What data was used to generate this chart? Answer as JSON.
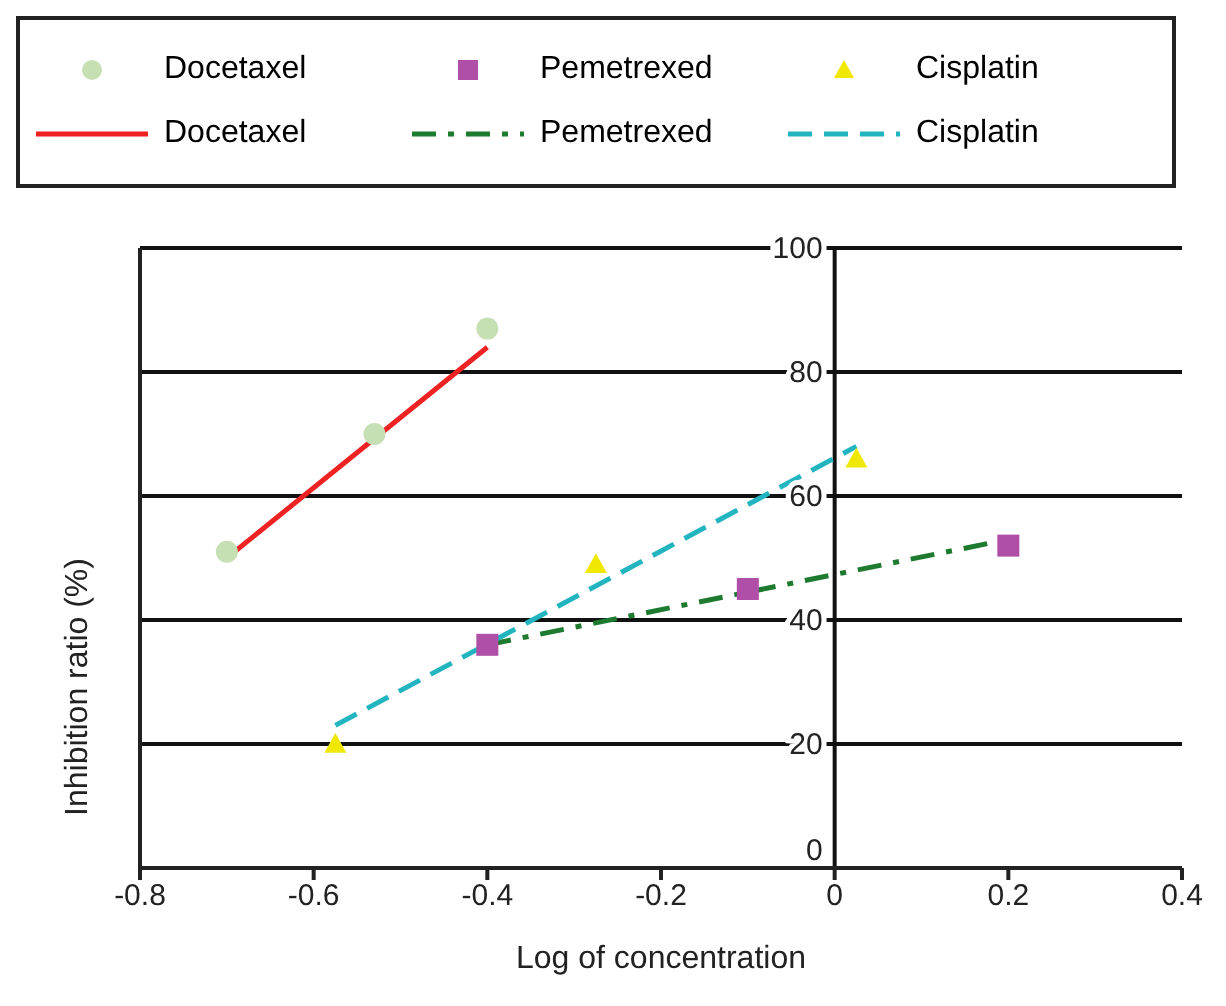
{
  "chart_data": {
    "type": "scatter",
    "xlabel": "Log of concentration",
    "ylabel": "Inhibition ratio (%)",
    "xlim": [
      -0.8,
      0.4
    ],
    "xticks": [
      -0.8,
      -0.6,
      -0.4,
      -0.2,
      0,
      0.2,
      0.4
    ],
    "ylim": [
      0,
      100
    ],
    "yticks": [
      0,
      20,
      40,
      60,
      80,
      100
    ],
    "grid": "y",
    "legend": "top",
    "series": [
      {
        "name": "Docetaxel",
        "marker": "circle",
        "color": "#c6e0b4",
        "x": [
          -0.7,
          -0.53,
          -0.4
        ],
        "values": [
          51,
          70,
          87
        ]
      },
      {
        "name": "Pemetrexed",
        "marker": "square",
        "color": "#b04fa8",
        "x": [
          -0.4,
          -0.1,
          0.2
        ],
        "values": [
          36,
          45,
          52
        ]
      },
      {
        "name": "Cisplatin",
        "marker": "triangle",
        "color": "#f0e800",
        "x": [
          -0.575,
          -0.275,
          0.025
        ],
        "values": [
          20,
          49,
          66
        ]
      },
      {
        "name": "Docetaxel",
        "type": "line",
        "line_style": "solid",
        "color": "#ee2222",
        "x": [
          -0.7,
          -0.4
        ],
        "values": [
          50,
          84
        ]
      },
      {
        "name": "Pemetrexed",
        "type": "line",
        "line_style": "dashdot",
        "color": "#1e7a2e",
        "x": [
          -0.4,
          0.2
        ],
        "values": [
          36,
          53
        ]
      },
      {
        "name": "Cisplatin",
        "type": "line",
        "line_style": "dashed",
        "color": "#22b5c0",
        "x": [
          -0.575,
          0.025
        ],
        "values": [
          23,
          68
        ]
      }
    ]
  }
}
